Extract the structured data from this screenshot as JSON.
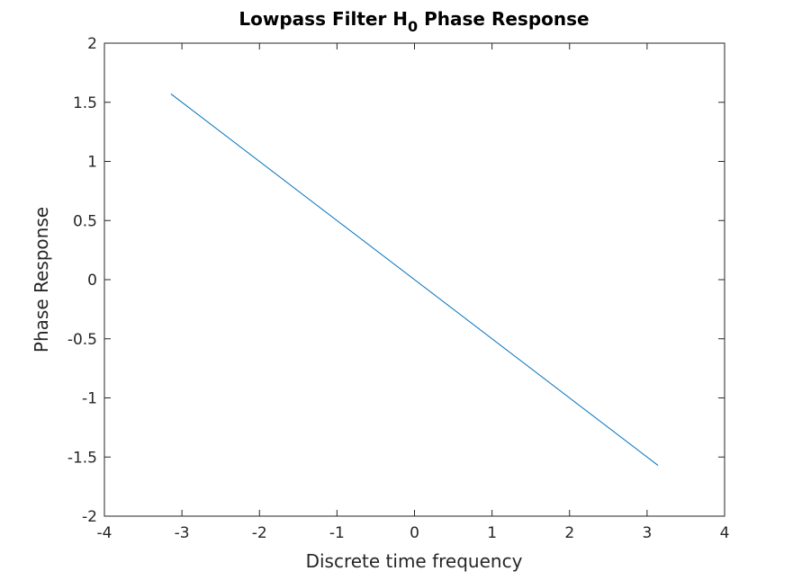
{
  "chart_data": {
    "type": "line",
    "title": {
      "main": "Lowpass Filter H",
      "subscript": "0",
      "suffix": " Phase Response"
    },
    "xlabel": "Discrete time frequency",
    "ylabel": "Phase Response",
    "xlim": [
      -4,
      4
    ],
    "ylim": [
      -2,
      2
    ],
    "xticks": [
      -4,
      -3,
      -2,
      -1,
      0,
      1,
      2,
      3,
      4
    ],
    "yticks": [
      -2,
      -1.5,
      -1,
      -0.5,
      0,
      0.5,
      1,
      1.5,
      2
    ],
    "xtick_labels": [
      "-4",
      "-3",
      "-2",
      "-1",
      "0",
      "1",
      "2",
      "3",
      "4"
    ],
    "ytick_labels": [
      "-2",
      "-1.5",
      "-1",
      "-0.5",
      "0",
      "0.5",
      "1",
      "1.5",
      "2"
    ],
    "grid": false,
    "box": true,
    "series": [
      {
        "color": "#0072bd",
        "x": [
          -3.1416,
          3.1416
        ],
        "y": [
          1.5708,
          -1.5708
        ]
      }
    ]
  }
}
